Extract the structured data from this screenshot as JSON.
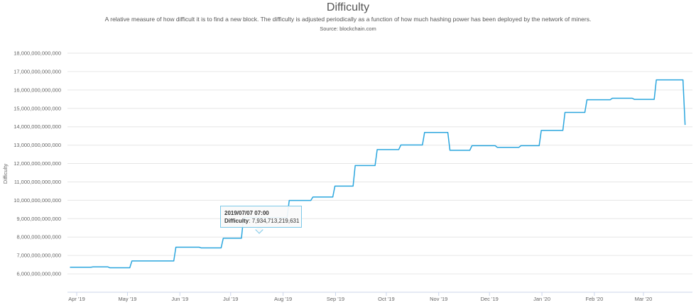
{
  "header": {
    "title": "Difficulty",
    "subtitle": "A relative measure of how difficult it is to find a new block. The difficulty is adjusted periodically as a function of how much hashing power has been deployed by the network of miners.",
    "source": "Source: blockchain.com"
  },
  "tooltip": {
    "date": "2019/07/07 07:00",
    "label": "Difficulty",
    "value": "7,934,713,219,631"
  },
  "chart_data": {
    "type": "line",
    "title": "Difficulty",
    "xlabel": "",
    "ylabel": "Difficulty",
    "ylim": [
      5000000000000,
      18000000000000
    ],
    "grid": true,
    "line_color": "#2ba6de",
    "y_ticks": [
      "6,000,000,000,000",
      "7,000,000,000,000",
      "8,000,000,000,000",
      "9,000,000,000,000",
      "10,000,000,000,000",
      "11,000,000,000,000",
      "12,000,000,000,000",
      "13,000,000,000,000",
      "14,000,000,000,000",
      "15,000,000,000,000",
      "16,000,000,000,000",
      "17,000,000,000,000",
      "18,000,000,000,000"
    ],
    "x_ticks": [
      {
        "date": "2019-04-01",
        "label": "Apr '19"
      },
      {
        "date": "2019-05-01",
        "label": "May '19"
      },
      {
        "date": "2019-06-01",
        "label": "Jun '19"
      },
      {
        "date": "2019-07-01",
        "label": "Jul '19"
      },
      {
        "date": "2019-08-01",
        "label": "Aug '19"
      },
      {
        "date": "2019-09-01",
        "label": "Sep '19"
      },
      {
        "date": "2019-10-01",
        "label": "Oct '19"
      },
      {
        "date": "2019-11-01",
        "label": "Nov '19"
      },
      {
        "date": "2019-12-01",
        "label": "Dec '19"
      },
      {
        "date": "2020-01-01",
        "label": "Jan '20"
      },
      {
        "date": "2020-02-01",
        "label": "Feb '20"
      },
      {
        "date": "2020-03-01",
        "label": "Mar '20"
      }
    ],
    "series": [
      {
        "points": [
          [
            "2019-03-28",
            6360000000000
          ],
          [
            "2019-04-10",
            6380000000000
          ],
          [
            "2019-04-20",
            6330000000000
          ],
          [
            "2019-05-03",
            6700000000000
          ],
          [
            "2019-05-29",
            7450000000000
          ],
          [
            "2019-06-13",
            7410000000000
          ],
          [
            "2019-06-26",
            7934713219631
          ],
          [
            "2019-07-08",
            9060000000000
          ],
          [
            "2019-08-04",
            9990000000000
          ],
          [
            "2019-08-18",
            10180000000000
          ],
          [
            "2019-08-31",
            10770000000000
          ],
          [
            "2019-09-12",
            11890000000000
          ],
          [
            "2019-09-25",
            12760000000000
          ],
          [
            "2019-10-09",
            13010000000000
          ],
          [
            "2019-10-23",
            13690000000000
          ],
          [
            "2019-11-07",
            12720000000000
          ],
          [
            "2019-11-20",
            12970000000000
          ],
          [
            "2019-12-05",
            12880000000000
          ],
          [
            "2019-12-19",
            12970000000000
          ],
          [
            "2019-12-31",
            13800000000000
          ],
          [
            "2020-01-14",
            14780000000000
          ],
          [
            "2020-01-27",
            15470000000000
          ],
          [
            "2020-02-11",
            15550000000000
          ],
          [
            "2020-02-24",
            15490000000000
          ],
          [
            "2020-03-08",
            16550000000000
          ],
          [
            "2020-03-25",
            14100000000000
          ]
        ]
      }
    ]
  }
}
